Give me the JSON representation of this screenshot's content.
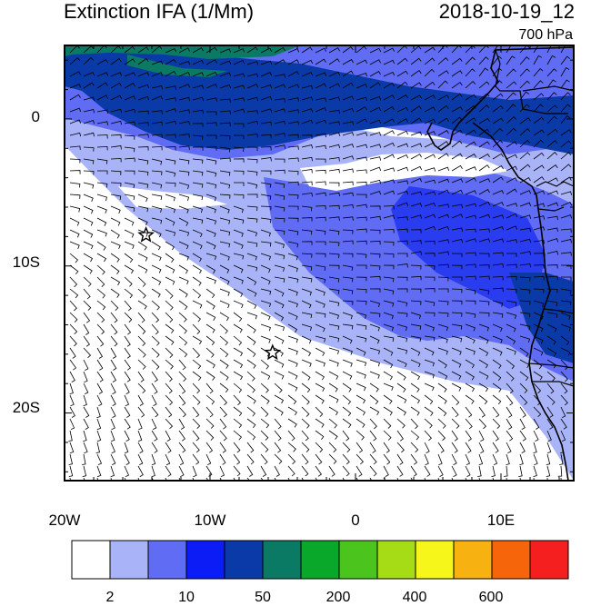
{
  "title": "Extinction IFA (1/Mm)",
  "datetime": "2018-10-19_12",
  "level": "700 hPa",
  "map": {
    "lon_range": [
      -20,
      15
    ],
    "lat_range": [
      -24.6,
      5
    ],
    "lon_ticks": [
      {
        "value": -20,
        "label": "20W"
      },
      {
        "value": -10,
        "label": "10W"
      },
      {
        "value": 0,
        "label": "0"
      },
      {
        "value": 10,
        "label": "10E"
      }
    ],
    "lat_ticks": [
      {
        "value": 0,
        "label": "0"
      },
      {
        "value": -10,
        "label": "10S"
      },
      {
        "value": -20,
        "label": "20S"
      }
    ],
    "markers": [
      {
        "name": "star-marker-ascension",
        "lon": -14.4,
        "lat": -7.9
      },
      {
        "name": "star-marker-st-helena",
        "lon": -5.7,
        "lat": -15.9
      }
    ]
  },
  "colorbar": {
    "colors": [
      "#ffffff",
      "#a9b3f8",
      "#5f6cf3",
      "#0c1cf6",
      "#0a3aa8",
      "#0a7a64",
      "#0aa82a",
      "#4cc41e",
      "#a6dc16",
      "#f6f61a",
      "#f7b110",
      "#f7650a",
      "#f51f1f"
    ],
    "tick_labels": [
      "2",
      "10",
      "50",
      "200",
      "400",
      "600"
    ]
  }
}
